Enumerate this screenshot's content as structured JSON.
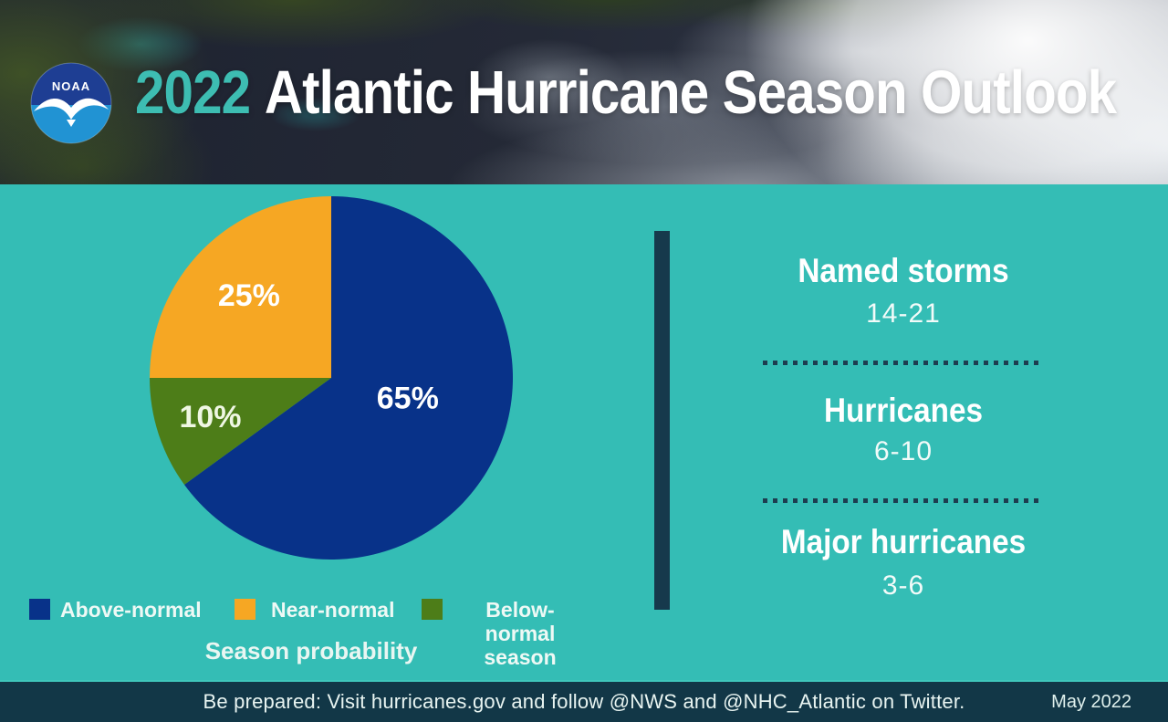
{
  "header": {
    "year": "2022",
    "title": "Atlantic Hurricane Season Outlook",
    "logo_label": "NOAA"
  },
  "chart_data": {
    "type": "pie",
    "title": "Season probability",
    "direction": "clockwise",
    "start_angle_deg": 0,
    "slices": [
      {
        "label": "Above-normal",
        "value": 65,
        "pct_label": "65%",
        "color": "#083289",
        "label_color": "#ffffff"
      },
      {
        "label": "Below-normal season",
        "value": 10,
        "pct_label": "10%",
        "color": "#4d7d18",
        "label_color": "#eff7e3"
      },
      {
        "label": "Near-normal",
        "value": 25,
        "pct_label": "25%",
        "color": "#f6a723",
        "label_color": "#ffffff"
      }
    ],
    "legend": [
      {
        "label": "Above-normal",
        "color": "#083289"
      },
      {
        "label": "Near-normal",
        "color": "#f6a723"
      },
      {
        "label": "Below-normal season",
        "color": "#4d7d18"
      }
    ]
  },
  "stats": {
    "items": [
      {
        "title": "Named storms",
        "range": "14-21"
      },
      {
        "title": "Hurricanes",
        "range": "6-10"
      },
      {
        "title": "Major hurricanes",
        "range": "3-6"
      }
    ]
  },
  "footer": {
    "message": "Be prepared: Visit hurricanes.gov and follow @NWS and @NHC_Atlantic on Twitter.",
    "date": "May 2022"
  },
  "colors": {
    "background_teal": "#34bdb5",
    "accent_teal": "#3dbdb2",
    "divider_navy": "#16394c",
    "footer_navy": "#123747"
  }
}
